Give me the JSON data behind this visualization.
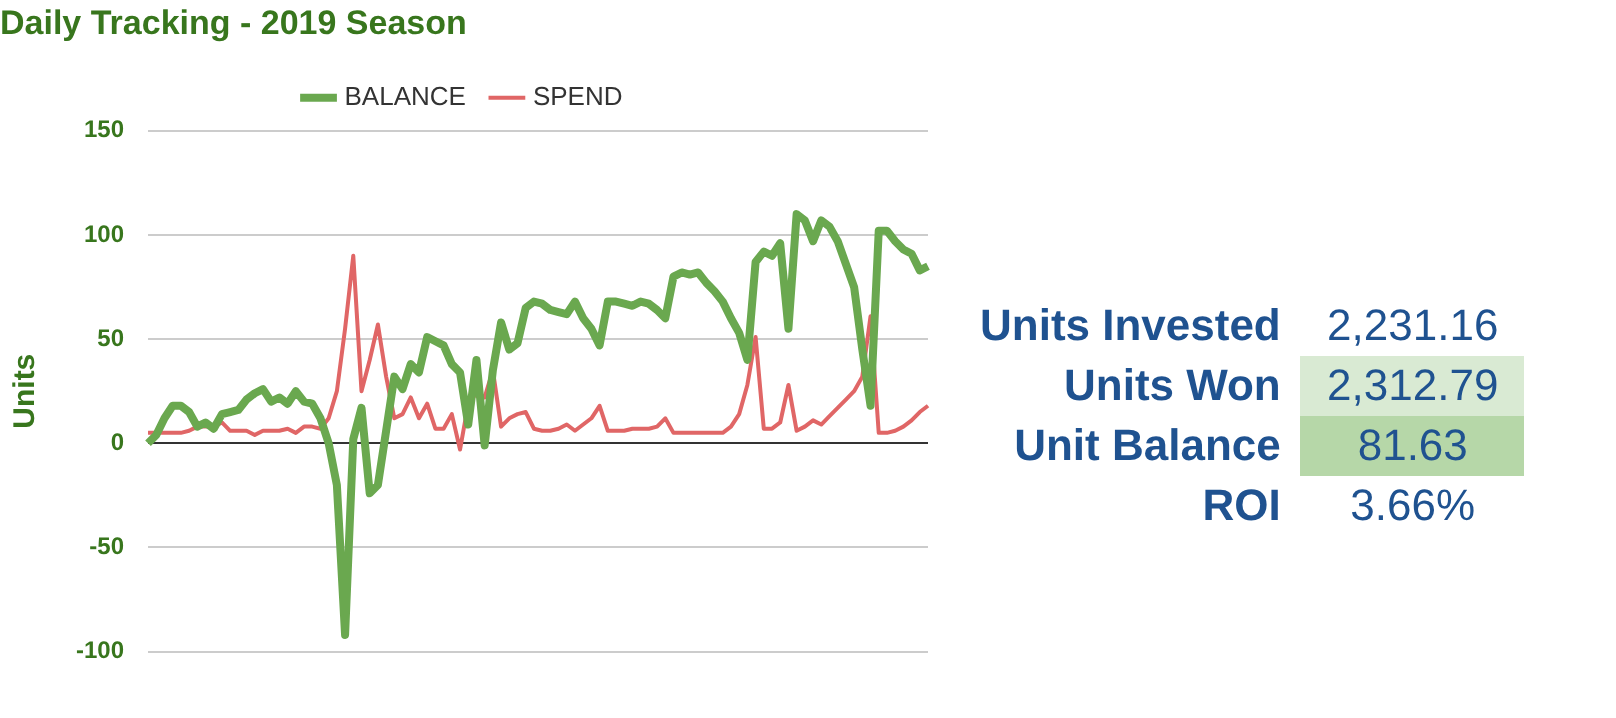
{
  "chart_data": [
    {
      "type": "line",
      "title": "Daily Tracking - 2019 Season",
      "ylabel": "Units",
      "categories": [
        null,
        null,
        null,
        null,
        null,
        null,
        null,
        null,
        null,
        null,
        null,
        null,
        null,
        null,
        null,
        null,
        null,
        null,
        null,
        null,
        null,
        null,
        null,
        null,
        null,
        null,
        null,
        null,
        null,
        null,
        null,
        null,
        null,
        null,
        null,
        null,
        null,
        null,
        null,
        null,
        null,
        null,
        null,
        null,
        null,
        null,
        null,
        null,
        null,
        null,
        null,
        null,
        null,
        null,
        null,
        null,
        null,
        null,
        null,
        null,
        null,
        null,
        null,
        null,
        null,
        null,
        null,
        null,
        null,
        null,
        null,
        null,
        null,
        null,
        null,
        null,
        null,
        null,
        null,
        null,
        null,
        null,
        null,
        null,
        null,
        null,
        null,
        null,
        null,
        null,
        null,
        null,
        null,
        null,
        null,
        null
      ],
      "series": [
        {
          "name": "BALANCE",
          "color": "#6aa84f",
          "values": [
            0,
            4,
            12,
            18,
            18,
            15,
            8,
            10,
            7,
            14,
            15,
            16,
            21,
            24,
            26,
            20,
            22,
            19,
            25,
            20,
            19,
            12,
            0,
            -20,
            -92,
            2,
            17,
            -24,
            -20,
            6,
            32,
            26,
            38,
            34,
            51,
            49,
            47,
            38,
            34,
            9,
            40,
            -1,
            35,
            58,
            45,
            48,
            65,
            68,
            67,
            64,
            63,
            62,
            68,
            60,
            55,
            47,
            68,
            68,
            67,
            66,
            68,
            67,
            64,
            60,
            80,
            82,
            81,
            82,
            77,
            73,
            68,
            60,
            53,
            40,
            87,
            92,
            90,
            96,
            55,
            110,
            107,
            97,
            107,
            104,
            97,
            86,
            75,
            45,
            18,
            102,
            102,
            97,
            93,
            91,
            83,
            85
          ]
        },
        {
          "name": "SPEND",
          "color": "#e06666",
          "values": [
            5,
            5,
            5,
            5,
            5,
            6,
            8,
            8,
            8,
            10,
            6,
            6,
            6,
            4,
            6,
            6,
            6,
            7,
            5,
            8,
            8,
            7,
            12,
            25,
            55,
            90,
            25,
            40,
            57,
            32,
            12,
            14,
            22,
            12,
            19,
            7,
            7,
            14,
            -3,
            19,
            24,
            22,
            35,
            8,
            12,
            14,
            15,
            7,
            6,
            6,
            7,
            9,
            6,
            9,
            12,
            18,
            6,
            6,
            6,
            7,
            7,
            7,
            8,
            12,
            5,
            5,
            5,
            5,
            5,
            5,
            5,
            8,
            14,
            28,
            51,
            7,
            7,
            10,
            28,
            6,
            8,
            11,
            9,
            13,
            17,
            21,
            25,
            32,
            61,
            5,
            5,
            6,
            8,
            11,
            15,
            18
          ]
        }
      ],
      "ylim": [
        -100,
        150
      ],
      "yticks": [
        -100,
        -50,
        0,
        50,
        100,
        150
      ],
      "grid": "y",
      "legend": "top",
      "tick_labels": "y",
      "marker": "none"
    },
    {
      "type": "other",
      "categories": [
        "Units Invested",
        "Units Won",
        "Unit Balance",
        "ROI"
      ],
      "value_labels": [
        "2,231.16",
        "2,312.79",
        "81.63",
        "3.66%"
      ],
      "colors": [
        "#ffffff",
        "#d9ead3",
        "#b6d7a8",
        "#ffffff"
      ]
    }
  ]
}
